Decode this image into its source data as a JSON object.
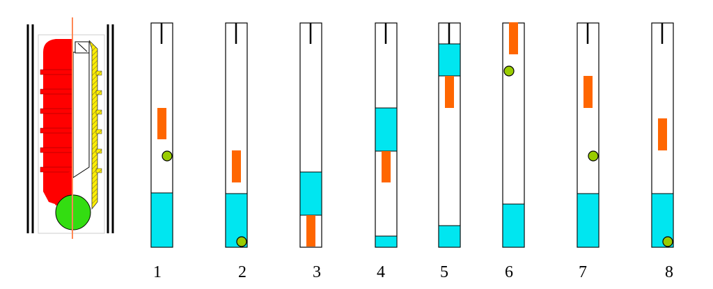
{
  "labels": [
    "1",
    "2",
    "3",
    "4",
    "5",
    "6",
    "7",
    "8"
  ],
  "colors": {
    "tube_fill": "#ffffff",
    "tube_stroke": "#000000",
    "cyan": "#00e6f0",
    "orange": "#ff6600",
    "ball": "#99cc00",
    "red": "#ff0000",
    "green_ball": "#33dd11",
    "yellow": "#ffee00",
    "line_orange": "#ff8855"
  }
}
